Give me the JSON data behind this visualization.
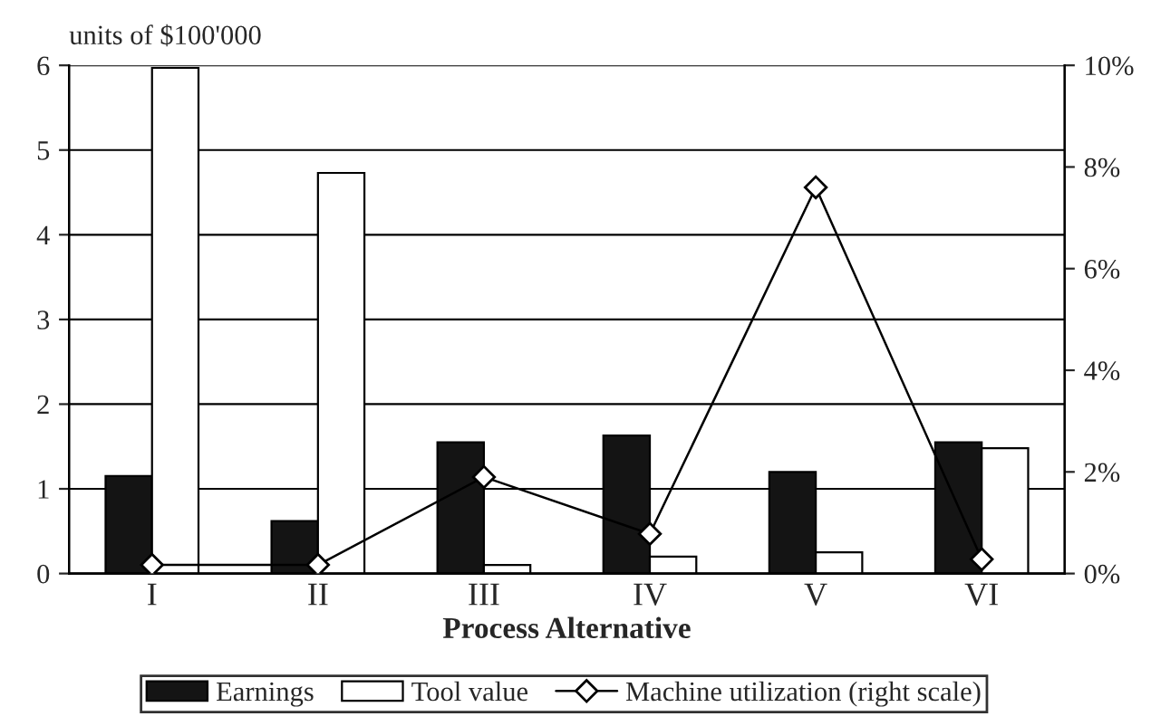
{
  "chart_data": {
    "type": "bar",
    "xlabel": "Process Alternative",
    "ylabel": "units of $100'000",
    "categories": [
      "I",
      "II",
      "III",
      "IV",
      "V",
      "VI"
    ],
    "series": [
      {
        "name": "Earnings",
        "color": "#141414",
        "values": [
          1.15,
          0.62,
          1.55,
          1.63,
          1.2,
          1.55
        ]
      },
      {
        "name": "Tool value",
        "color": "#ffffff",
        "values": [
          5.97,
          4.73,
          0.1,
          0.2,
          0.25,
          1.48
        ]
      },
      {
        "name": "Machine utilization (right scale)",
        "type": "line",
        "axis": "y2",
        "color": "#000000",
        "marker": "diamond",
        "values": [
          0.17,
          0.17,
          1.9,
          0.78,
          7.6,
          0.28
        ]
      }
    ],
    "ylim": [
      0,
      6
    ],
    "yticks": [
      0,
      1,
      2,
      3,
      4,
      5,
      6
    ],
    "y2lim": [
      0,
      10
    ],
    "y2ticks": [
      {
        "value": 0,
        "label": "0%"
      },
      {
        "value": 2,
        "label": "2%"
      },
      {
        "value": 4,
        "label": "4%"
      },
      {
        "value": 6,
        "label": "6%"
      },
      {
        "value": 8,
        "label": "8%"
      },
      {
        "value": 10,
        "label": "10%"
      }
    ],
    "grid": "y",
    "legend": "bottom"
  }
}
